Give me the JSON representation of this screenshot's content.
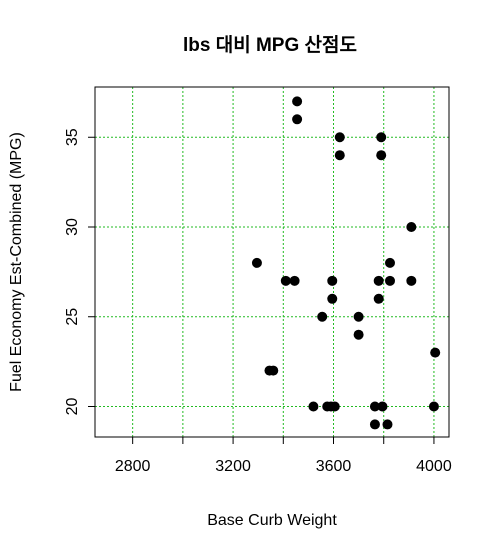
{
  "chart_data": {
    "type": "scatter",
    "title": "lbs 대비 MPG 산점도",
    "xlabel": "Base Curb Weight",
    "ylabel": "Fuel Economy Est-Combined (MPG)",
    "xlim": [
      2650,
      4060
    ],
    "ylim": [
      18.3,
      37.8
    ],
    "x_ticks": [
      2800,
      3000,
      3200,
      3400,
      3600,
      3800,
      4000
    ],
    "x_tick_labels": [
      "2800",
      "3200",
      "3600",
      "4000"
    ],
    "x_tick_label_values": [
      2800,
      3200,
      3600,
      4000
    ],
    "y_ticks": [
      20,
      25,
      30,
      35
    ],
    "y_tick_labels": [
      "20",
      "25",
      "30",
      "35"
    ],
    "grid": true,
    "colors": {
      "grid": "#22bb22",
      "points": "#000000",
      "box": "#000000"
    },
    "points": [
      {
        "x": 3455,
        "y": 37
      },
      {
        "x": 3455,
        "y": 36
      },
      {
        "x": 3625,
        "y": 35
      },
      {
        "x": 3790,
        "y": 35
      },
      {
        "x": 3625,
        "y": 34
      },
      {
        "x": 3790,
        "y": 34
      },
      {
        "x": 3910,
        "y": 30
      },
      {
        "x": 3295,
        "y": 28
      },
      {
        "x": 3825,
        "y": 28
      },
      {
        "x": 3410,
        "y": 27
      },
      {
        "x": 3445,
        "y": 27
      },
      {
        "x": 3595,
        "y": 27
      },
      {
        "x": 3780,
        "y": 27
      },
      {
        "x": 3825,
        "y": 27
      },
      {
        "x": 3910,
        "y": 27
      },
      {
        "x": 3595,
        "y": 26
      },
      {
        "x": 3780,
        "y": 26
      },
      {
        "x": 3555,
        "y": 25
      },
      {
        "x": 3700,
        "y": 25
      },
      {
        "x": 3700,
        "y": 24
      },
      {
        "x": 4005,
        "y": 23
      },
      {
        "x": 3345,
        "y": 22
      },
      {
        "x": 3360,
        "y": 22
      },
      {
        "x": 3520,
        "y": 20
      },
      {
        "x": 3575,
        "y": 20
      },
      {
        "x": 3590,
        "y": 20
      },
      {
        "x": 3605,
        "y": 20
      },
      {
        "x": 3765,
        "y": 20
      },
      {
        "x": 3795,
        "y": 20
      },
      {
        "x": 4000,
        "y": 20
      },
      {
        "x": 3765,
        "y": 19
      },
      {
        "x": 3815,
        "y": 19
      }
    ]
  }
}
